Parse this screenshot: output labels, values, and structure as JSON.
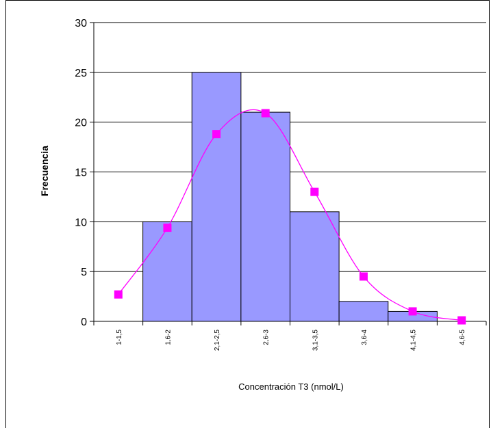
{
  "chart_data": {
    "type": "bar",
    "categories": [
      "1-1,5",
      "1,6-2",
      "2,1-2,5",
      "2,6-3",
      "3,1-3,5",
      "3,6-4",
      "4,1-4,5",
      "4,6-5"
    ],
    "values": [
      0,
      10,
      25,
      21,
      11,
      2,
      1,
      0
    ],
    "series": [
      {
        "type": "bar",
        "values": [
          0,
          10,
          25,
          21,
          11,
          2,
          1,
          0
        ]
      },
      {
        "type": "line",
        "values": [
          2.7,
          9.4,
          18.8,
          20.9,
          13.0,
          4.5,
          1.0,
          0.1
        ]
      }
    ],
    "xlabel": "Concentración T3 (nmol/L)",
    "ylabel": "Frecuencia",
    "ylim": [
      0,
      30
    ],
    "yticks": [
      "0",
      "5",
      "10",
      "15",
      "20",
      "25",
      "30"
    ],
    "grid": true,
    "colors": {
      "bar_fill": "#9999ff",
      "bar_stroke": "#000000",
      "line": "#ff00ff",
      "marker": "#ff00ff"
    }
  }
}
